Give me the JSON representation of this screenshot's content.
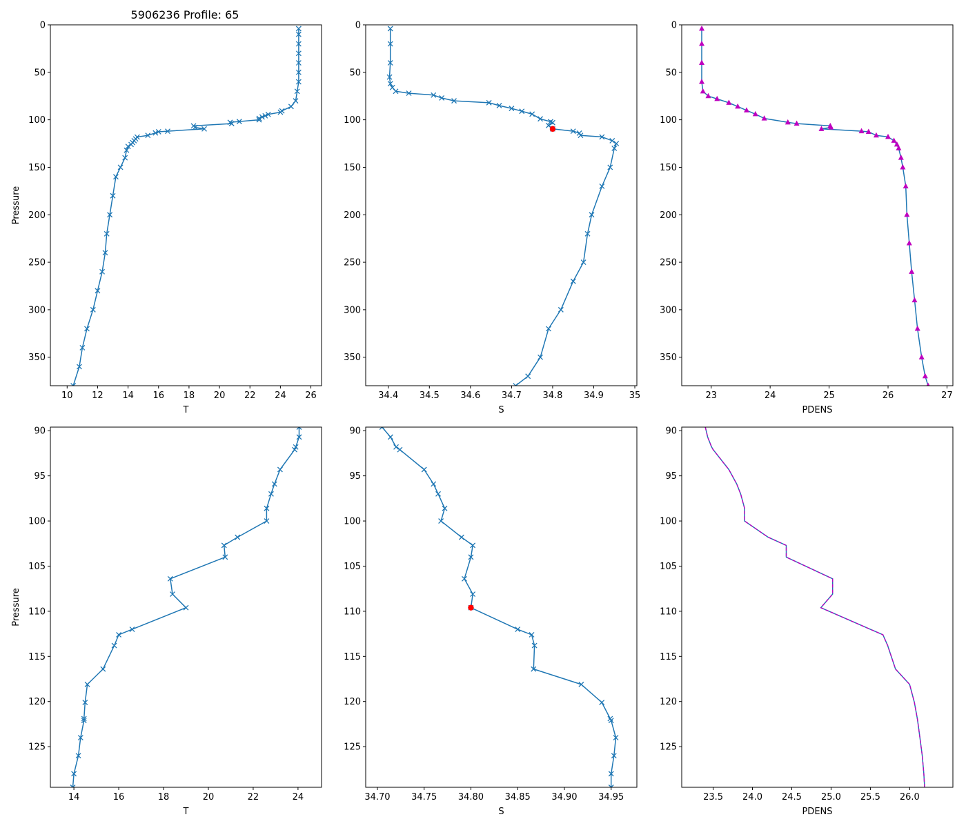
{
  "figure": {
    "title": "5906236 Profile: 65"
  },
  "colors": {
    "line": "#1f77b4",
    "dens": "#bf00bf",
    "qc": "#ff0000",
    "axis": "#000000"
  },
  "chart_data": [
    {
      "id": "t_full",
      "type": "line",
      "title": "5906236 Profile: 65",
      "xlabel": "T",
      "ylabel": "Pressure",
      "xlim": [
        8.9,
        26.7
      ],
      "ylim": [
        380,
        0
      ],
      "xticks": [
        10,
        12,
        14,
        16,
        18,
        20,
        22,
        24,
        26
      ],
      "yticks": [
        0,
        50,
        100,
        150,
        200,
        250,
        300,
        350
      ],
      "marker": "x",
      "series": [
        {
          "name": "T",
          "points": [
            [
              25.2,
              4
            ],
            [
              25.2,
              10
            ],
            [
              25.2,
              20
            ],
            [
              25.2,
              30
            ],
            [
              25.2,
              40
            ],
            [
              25.2,
              50
            ],
            [
              25.2,
              60
            ],
            [
              25.1,
              70
            ],
            [
              25.0,
              80
            ],
            [
              24.7,
              86
            ],
            [
              24.1,
              90.6
            ],
            [
              24.0,
              92
            ],
            [
              23.2,
              94.3
            ],
            [
              23.0,
              95.8
            ],
            [
              22.8,
              97
            ],
            [
              22.6,
              98.5
            ],
            [
              22.6,
              100
            ],
            [
              21.3,
              101.8
            ],
            [
              20.7,
              102.7
            ],
            [
              20.8,
              104
            ],
            [
              18.3,
              106.4
            ],
            [
              18.4,
              108
            ],
            [
              19.0,
              109.6
            ],
            [
              16.6,
              112
            ],
            [
              16.0,
              112.6
            ],
            [
              15.8,
              113.8
            ],
            [
              15.3,
              116.4
            ],
            [
              14.6,
              118.1
            ],
            [
              14.5,
              120.1
            ],
            [
              14.4,
              122
            ],
            [
              14.3,
              124
            ],
            [
              14.2,
              126
            ],
            [
              14.0,
              128
            ],
            [
              13.9,
              132
            ],
            [
              13.8,
              140
            ],
            [
              13.5,
              150
            ],
            [
              13.2,
              160
            ],
            [
              13.0,
              180
            ],
            [
              12.8,
              200
            ],
            [
              12.6,
              220
            ],
            [
              12.5,
              240
            ],
            [
              12.3,
              260
            ],
            [
              12.0,
              280
            ],
            [
              11.7,
              300
            ],
            [
              11.3,
              320
            ],
            [
              11.0,
              340
            ],
            [
              10.8,
              360
            ],
            [
              10.4,
              380
            ]
          ]
        }
      ]
    },
    {
      "id": "s_full",
      "type": "line",
      "xlabel": "S",
      "ylabel": "",
      "xlim": [
        34.345,
        35.005
      ],
      "ylim": [
        380,
        0
      ],
      "xticks": [
        34.4,
        34.5,
        34.6,
        34.7,
        34.8,
        34.9,
        35.0
      ],
      "yticks": [
        0,
        50,
        100,
        150,
        200,
        250,
        300,
        350
      ],
      "marker": "x",
      "qc_point": [
        34.8,
        109.6
      ],
      "series": [
        {
          "name": "S",
          "points": [
            [
              34.405,
              4
            ],
            [
              34.405,
              20
            ],
            [
              34.405,
              40
            ],
            [
              34.403,
              55
            ],
            [
              34.405,
              62
            ],
            [
              34.41,
              66
            ],
            [
              34.418,
              70
            ],
            [
              34.45,
              72
            ],
            [
              34.51,
              74
            ],
            [
              34.53,
              77
            ],
            [
              34.56,
              80
            ],
            [
              34.645,
              82
            ],
            [
              34.67,
              85
            ],
            [
              34.7,
              88
            ],
            [
              34.725,
              91
            ],
            [
              34.75,
              94
            ],
            [
              34.77,
              99
            ],
            [
              34.795,
              102
            ],
            [
              34.8,
              103
            ],
            [
              34.79,
              106
            ],
            [
              34.8,
              109.6
            ],
            [
              34.85,
              112
            ],
            [
              34.865,
              114
            ],
            [
              34.868,
              116.4
            ],
            [
              34.92,
              118
            ],
            [
              34.945,
              122
            ],
            [
              34.955,
              125
            ],
            [
              34.95,
              130
            ],
            [
              34.94,
              150
            ],
            [
              34.92,
              170
            ],
            [
              34.895,
              200
            ],
            [
              34.885,
              220
            ],
            [
              34.875,
              250
            ],
            [
              34.85,
              270
            ],
            [
              34.82,
              300
            ],
            [
              34.79,
              320
            ],
            [
              34.77,
              350
            ],
            [
              34.74,
              370
            ],
            [
              34.71,
              380
            ]
          ]
        }
      ]
    },
    {
      "id": "d_full",
      "type": "line",
      "xlabel": "PDENS",
      "ylabel": "",
      "xlim": [
        22.5,
        27.1
      ],
      "ylim": [
        380,
        0
      ],
      "xticks": [
        23,
        24,
        25,
        26,
        27
      ],
      "yticks": [
        0,
        50,
        100,
        150,
        200,
        250,
        300,
        350
      ],
      "marker": "triangle",
      "series": [
        {
          "name": "PDENS",
          "points": [
            [
              22.84,
              4
            ],
            [
              22.84,
              20
            ],
            [
              22.84,
              40
            ],
            [
              22.84,
              60
            ],
            [
              22.86,
              70
            ],
            [
              22.95,
              75
            ],
            [
              23.1,
              78
            ],
            [
              23.3,
              82
            ],
            [
              23.45,
              86
            ],
            [
              23.6,
              90
            ],
            [
              23.75,
              94
            ],
            [
              23.9,
              98.5
            ],
            [
              24.3,
              102.7
            ],
            [
              24.45,
              104
            ],
            [
              25.02,
              106.4
            ],
            [
              25.03,
              108
            ],
            [
              24.87,
              109.6
            ],
            [
              25.55,
              112
            ],
            [
              25.67,
              112.6
            ],
            [
              25.8,
              116.4
            ],
            [
              26.0,
              118
            ],
            [
              26.1,
              122
            ],
            [
              26.15,
              126
            ],
            [
              26.18,
              130
            ],
            [
              26.22,
              140
            ],
            [
              26.25,
              150
            ],
            [
              26.3,
              170
            ],
            [
              26.32,
              200
            ],
            [
              26.36,
              230
            ],
            [
              26.4,
              260
            ],
            [
              26.45,
              290
            ],
            [
              26.5,
              320
            ],
            [
              26.57,
              350
            ],
            [
              26.63,
              370
            ],
            [
              26.68,
              380
            ]
          ]
        }
      ]
    },
    {
      "id": "t_zoom",
      "type": "line",
      "xlabel": "T",
      "ylabel": "Pressure",
      "xlim": [
        12.95,
        25.05
      ],
      "ylim": [
        129.5,
        89.6
      ],
      "xticks": [
        14,
        16,
        18,
        20,
        22,
        24
      ],
      "yticks": [
        90,
        95,
        100,
        105,
        110,
        115,
        120,
        125
      ],
      "marker": "x",
      "series": [
        {
          "name": "T",
          "points": [
            [
              24.05,
              89.6
            ],
            [
              24.05,
              90.7
            ],
            [
              23.9,
              91.8
            ],
            [
              23.85,
              92.1
            ],
            [
              23.2,
              94.3
            ],
            [
              22.95,
              95.9
            ],
            [
              22.8,
              97
            ],
            [
              22.6,
              98.6
            ],
            [
              22.6,
              100
            ],
            [
              21.3,
              101.8
            ],
            [
              20.7,
              102.7
            ],
            [
              20.75,
              104
            ],
            [
              18.3,
              106.4
            ],
            [
              18.4,
              108.1
            ],
            [
              19.0,
              109.6
            ],
            [
              16.6,
              112
            ],
            [
              16.0,
              112.6
            ],
            [
              15.8,
              113.8
            ],
            [
              15.3,
              116.4
            ],
            [
              14.6,
              118.1
            ],
            [
              14.5,
              120.1
            ],
            [
              14.45,
              121.9
            ],
            [
              14.45,
              122.1
            ],
            [
              14.3,
              124
            ],
            [
              14.2,
              126
            ],
            [
              14.0,
              128
            ],
            [
              13.95,
              129.5
            ]
          ]
        }
      ]
    },
    {
      "id": "s_zoom",
      "type": "line",
      "xlabel": "S",
      "ylabel": "",
      "xlim": [
        34.6875,
        34.9775
      ],
      "ylim": [
        129.5,
        89.6
      ],
      "xticks": [
        34.7,
        34.75,
        34.8,
        34.85,
        34.9,
        34.95
      ],
      "xtick_labels": [
        "34.70",
        "34.75",
        "34.80",
        "34.85",
        "34.90",
        "34.95"
      ],
      "yticks": [
        90,
        95,
        100,
        105,
        110,
        115,
        120,
        125
      ],
      "marker": "x",
      "qc_point": [
        34.8,
        109.6
      ],
      "series": [
        {
          "name": "S",
          "points": [
            [
              34.705,
              89.6
            ],
            [
              34.714,
              90.7
            ],
            [
              34.72,
              91.8
            ],
            [
              34.724,
              92.1
            ],
            [
              34.75,
              94.3
            ],
            [
              34.76,
              95.9
            ],
            [
              34.765,
              97
            ],
            [
              34.772,
              98.6
            ],
            [
              34.768,
              100
            ],
            [
              34.79,
              101.8
            ],
            [
              34.802,
              102.7
            ],
            [
              34.8,
              104
            ],
            [
              34.793,
              106.4
            ],
            [
              34.802,
              108.1
            ],
            [
              34.8,
              109.6
            ],
            [
              34.85,
              112
            ],
            [
              34.865,
              112.6
            ],
            [
              34.868,
              113.8
            ],
            [
              34.867,
              116.4
            ],
            [
              34.918,
              118.1
            ],
            [
              34.94,
              120.1
            ],
            [
              34.949,
              121.9
            ],
            [
              34.95,
              122.1
            ],
            [
              34.955,
              124
            ],
            [
              34.953,
              126
            ],
            [
              34.95,
              128
            ],
            [
              34.95,
              129.5
            ]
          ]
        }
      ]
    },
    {
      "id": "d_zoom",
      "type": "line",
      "xlabel": "PDENS",
      "ylabel": "",
      "xlim": [
        23.1,
        26.55
      ],
      "ylim": [
        129.5,
        89.6
      ],
      "xticks": [
        23.5,
        24.0,
        24.5,
        25.0,
        25.5,
        26.0
      ],
      "xtick_labels": [
        "23.5",
        "24.0",
        "24.5",
        "25.0",
        "25.5",
        "26.0"
      ],
      "yticks": [
        90,
        95,
        100,
        105,
        110,
        115,
        120,
        125
      ],
      "marker": "none",
      "series": [
        {
          "name": "PDENS",
          "points": [
            [
              23.4,
              89.6
            ],
            [
              23.43,
              90.7
            ],
            [
              23.48,
              91.8
            ],
            [
              23.5,
              92.1
            ],
            [
              23.7,
              94.3
            ],
            [
              23.8,
              95.9
            ],
            [
              23.85,
              97
            ],
            [
              23.9,
              98.6
            ],
            [
              23.9,
              100
            ],
            [
              24.2,
              101.8
            ],
            [
              24.43,
              102.7
            ],
            [
              24.43,
              104
            ],
            [
              25.02,
              106.4
            ],
            [
              25.02,
              108.1
            ],
            [
              24.87,
              109.6
            ],
            [
              25.5,
              112
            ],
            [
              25.66,
              112.6
            ],
            [
              25.72,
              113.8
            ],
            [
              25.82,
              116.4
            ],
            [
              26.0,
              118.1
            ],
            [
              26.06,
              120.1
            ],
            [
              26.1,
              122
            ],
            [
              26.13,
              124
            ],
            [
              26.16,
              126
            ],
            [
              26.18,
              128
            ],
            [
              26.19,
              129.5
            ]
          ]
        }
      ]
    }
  ]
}
